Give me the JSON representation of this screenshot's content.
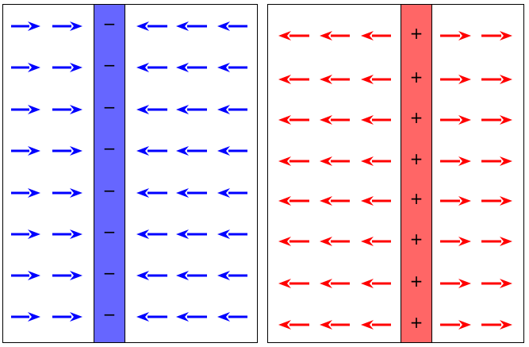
{
  "panels": [
    {
      "id": "negative",
      "plate_color": "#6666ff",
      "charge_symbol": "−",
      "arrow_color": "#0000ff",
      "direction_left_of_plate": "right",
      "direction_right_of_plate": "left",
      "arrows_left_of_plate": 2,
      "arrows_right_of_plate": 3,
      "rows": 8
    },
    {
      "id": "positive",
      "plate_color": "#ff6666",
      "charge_symbol": "+",
      "arrow_color": "#ff0000",
      "direction_left_of_plate": "left",
      "direction_right_of_plate": "right",
      "arrows_left_of_plate": 3,
      "arrows_right_of_plate": 2,
      "rows": 8
    }
  ]
}
